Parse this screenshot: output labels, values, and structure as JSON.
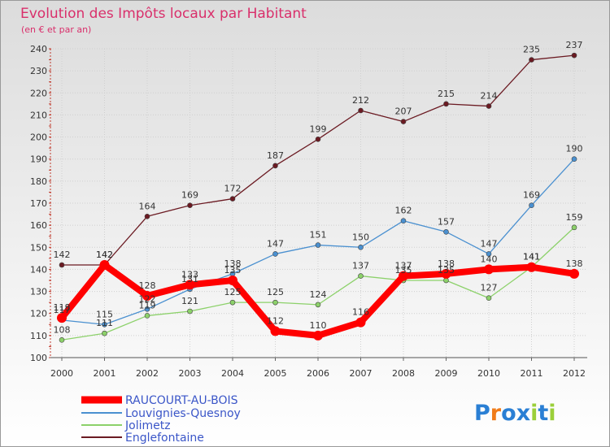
{
  "chart_data": {
    "type": "line",
    "title": "Evolution des Impôts locaux par Habitant",
    "subtitle": "(en € et par an)",
    "xlabel": "",
    "ylabel": "",
    "ylim": [
      100,
      240
    ],
    "yticks": [
      100,
      110,
      120,
      130,
      140,
      150,
      160,
      170,
      180,
      190,
      200,
      210,
      220,
      230,
      240
    ],
    "categories": [
      "2000",
      "2001",
      "2002",
      "2003",
      "2004",
      "2005",
      "2006",
      "2007",
      "2008",
      "2009",
      "2010",
      "2011",
      "2012"
    ],
    "grid": true,
    "legend_position": "bottom-left",
    "series": [
      {
        "name": "RAUCOURT-AU-BOIS",
        "color": "#ff0000",
        "values": [
          118,
          142,
          128,
          133,
          135,
          112,
          110,
          116,
          137,
          138,
          140,
          141,
          138
        ]
      },
      {
        "name": "Louvignies-Quesnoy",
        "color": "#4a90d0",
        "values": [
          117,
          115,
          122,
          131,
          138,
          147,
          151,
          150,
          162,
          157,
          147,
          169,
          190
        ]
      },
      {
        "name": "Jolimetz",
        "color": "#8cd16a",
        "values": [
          108,
          111,
          119,
          121,
          125,
          125,
          124,
          137,
          135,
          135,
          127,
          141,
          159
        ]
      },
      {
        "name": "Englefontaine",
        "color": "#6b1a22",
        "values": [
          142,
          142,
          164,
          169,
          172,
          187,
          199,
          212,
          207,
          215,
          214,
          235,
          237
        ]
      }
    ],
    "data_label_texts": [
      [
        "118",
        "142",
        "128",
        "133",
        "135",
        "112",
        "110",
        "116",
        "137",
        "138",
        "140",
        "141",
        "138"
      ],
      [
        "117",
        "115",
        "122",
        "131",
        "138",
        "147",
        "151",
        "150",
        "162",
        "157",
        "147",
        "169",
        "190"
      ],
      [
        "108",
        "111",
        "119",
        "121",
        "125",
        "125",
        "124",
        "137",
        "135",
        "135",
        "127",
        "141",
        "159"
      ],
      [
        "142",
        "142",
        "164",
        "169",
        "172",
        "187",
        "199",
        "212",
        "207",
        "215",
        "214",
        "235",
        "237"
      ]
    ]
  },
  "brand": {
    "text": "Proxiti",
    "letters": [
      "P",
      "r",
      "o",
      "x",
      "i",
      "t",
      "i"
    ],
    "colors": [
      "#2a7fd4",
      "#f07c1a",
      "#2a7fd4",
      "#2a7fd4",
      "#9bcf3a",
      "#2a7fd4",
      "#9bcf3a"
    ]
  }
}
